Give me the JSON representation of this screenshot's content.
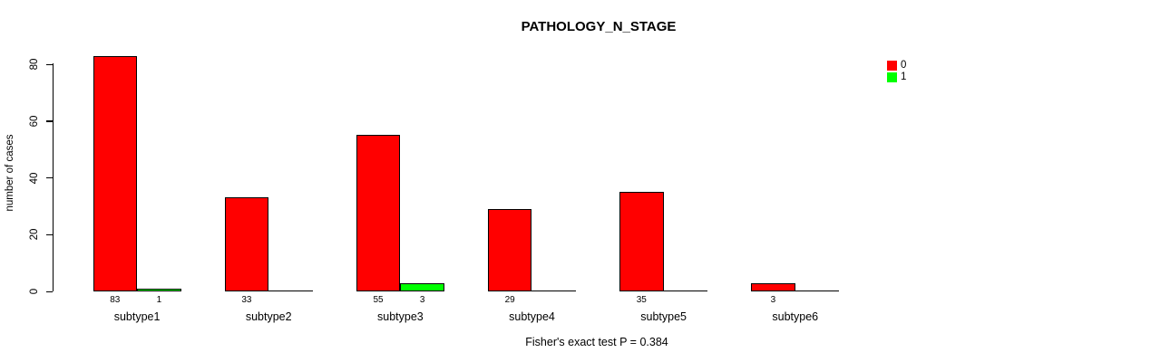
{
  "chart_data": {
    "type": "bar",
    "title": "PATHOLOGY_N_STAGE",
    "ylabel": "number of cases",
    "xlabel": "",
    "categories": [
      "subtype1",
      "subtype2",
      "subtype3",
      "subtype4",
      "subtype5",
      "subtype6"
    ],
    "series": [
      {
        "name": "0",
        "color": "#ff0000",
        "values": [
          83,
          33,
          55,
          29,
          35,
          3
        ]
      },
      {
        "name": "1",
        "color": "#00ff00",
        "values": [
          1,
          0,
          3,
          0,
          0,
          0
        ]
      }
    ],
    "yticks": [
      0,
      20,
      40,
      60,
      80
    ],
    "ylim": [
      0,
      80
    ],
    "grid": false,
    "legend_position": "top-right",
    "bar_value_labels_shown_when_nonzero": true,
    "annotation": "Fisher's exact test P = 0.384"
  },
  "colors": {
    "bar_outline": "#000000",
    "axis": "#000000",
    "text": "#000000",
    "background": "#ffffff"
  }
}
